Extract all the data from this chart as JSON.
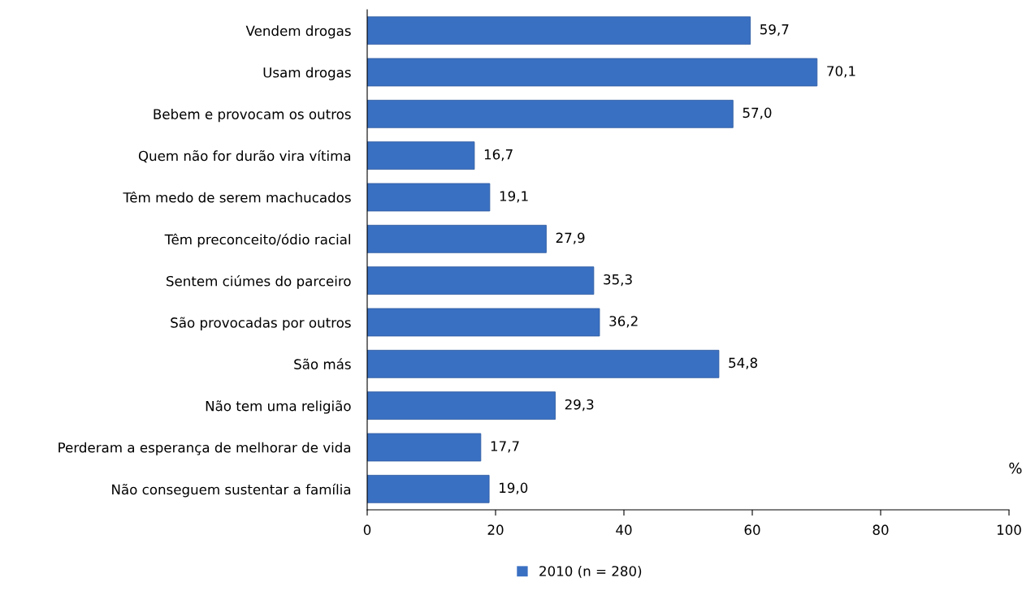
{
  "chart_data": {
    "type": "bar",
    "orientation": "horizontal",
    "categories": [
      "Vendem drogas",
      "Usam drogas",
      "Bebem e provocam os outros",
      "Quem não for durão vira vítima",
      "Têm medo de serem machucados",
      "Têm preconceito/ódio racial",
      "Sentem ciúmes do parceiro",
      "São provocadas por outros",
      "São más",
      "Não tem uma religião",
      "Perderam a esperança de melhorar de vida",
      "Não conseguem sustentar a família"
    ],
    "series": [
      {
        "name": "2010 (n = 280)",
        "color": "#3a70c2",
        "values": [
          59.7,
          70.1,
          57.0,
          16.7,
          19.1,
          27.9,
          35.3,
          36.2,
          54.8,
          29.3,
          17.7,
          19.0
        ],
        "value_labels": [
          "59,7",
          "70,1",
          "57,0",
          "16,7",
          "19,1",
          "27,9",
          "35,3",
          "36,2",
          "54,8",
          "29,3",
          "17,7",
          "19,0"
        ]
      }
    ],
    "xlabel": "%",
    "xlim": [
      0,
      100
    ],
    "xticks": [
      0,
      20,
      40,
      60,
      80,
      100
    ],
    "grid": false,
    "legend": "bottom"
  }
}
